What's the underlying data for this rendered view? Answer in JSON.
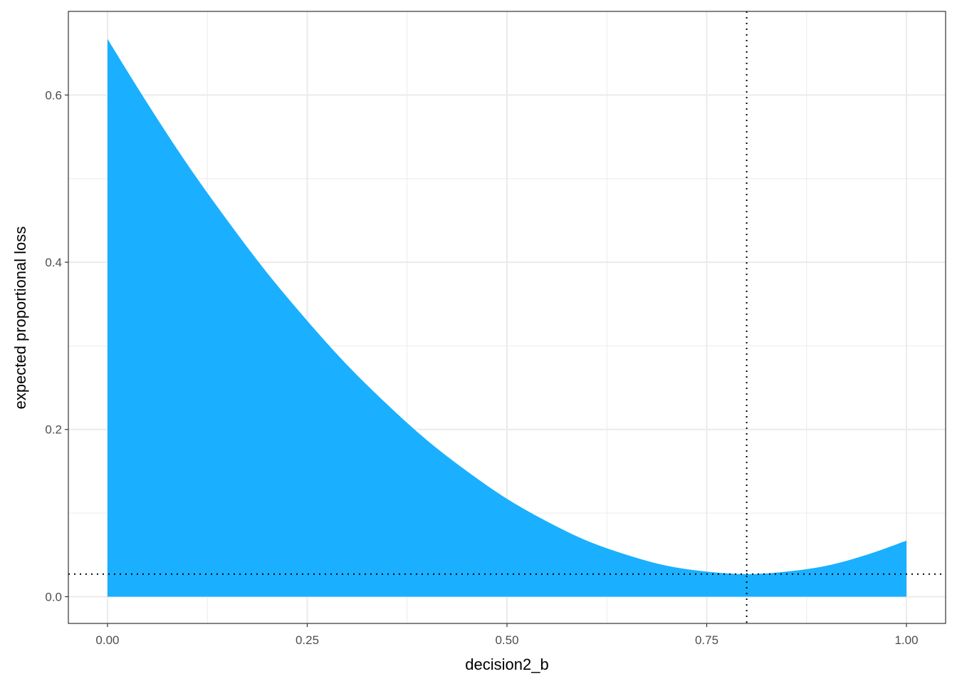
{
  "chart_data": {
    "type": "area",
    "title": "",
    "xlabel": "decision2_b",
    "ylabel": "expected proportional loss",
    "xlim": [
      -0.049,
      1.049
    ],
    "ylim": [
      -0.032,
      0.7
    ],
    "x_ticks": [
      0,
      0.25,
      0.5,
      0.75,
      1.0
    ],
    "x_tick_labels": [
      "0.00",
      "0.25",
      "0.50",
      "0.75",
      "1.00"
    ],
    "y_ticks": [
      0,
      0.2,
      0.4,
      0.6
    ],
    "y_tick_labels": [
      "0.0",
      "0.2",
      "0.4",
      "0.6"
    ],
    "grid": true,
    "fill_color": "#1AB0FF",
    "x": [
      0,
      0.05,
      0.1,
      0.15,
      0.2,
      0.25,
      0.3,
      0.35,
      0.4,
      0.45,
      0.5,
      0.55,
      0.6,
      0.65,
      0.7,
      0.75,
      0.8,
      0.85,
      0.9,
      0.95,
      1.0
    ],
    "y": [
      0.667,
      0.59,
      0.517,
      0.45,
      0.387,
      0.33,
      0.277,
      0.23,
      0.187,
      0.15,
      0.117,
      0.09,
      0.067,
      0.05,
      0.037,
      0.03,
      0.027,
      0.03,
      0.037,
      0.05,
      0.067
    ],
    "reference_lines": {
      "vertical_x": 0.8,
      "horizontal_y": 0.027,
      "style": "dotted"
    }
  }
}
